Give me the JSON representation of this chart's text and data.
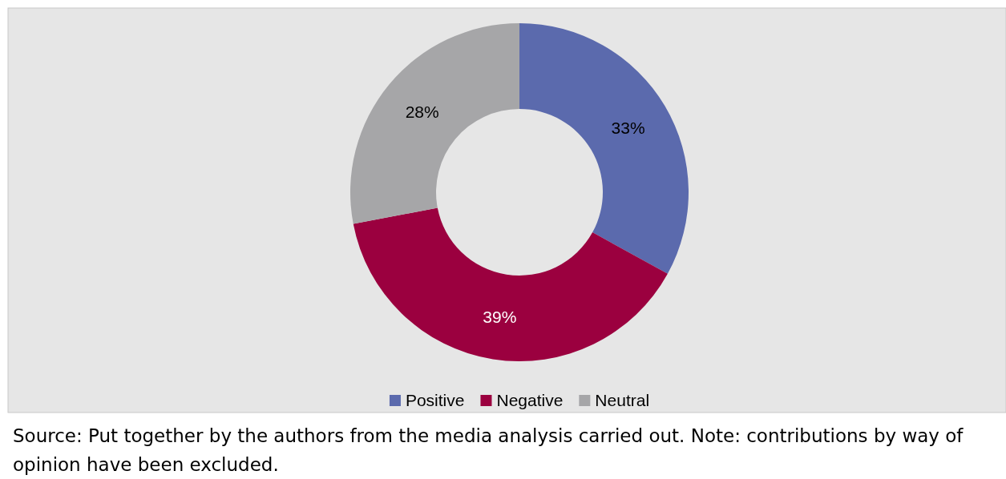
{
  "chart_data": {
    "type": "donut",
    "categories": [
      "Positive",
      "Negative",
      "Neutral"
    ],
    "values": [
      33,
      39,
      28
    ],
    "colors": [
      "#5b6aad",
      "#9b003f",
      "#a6a6a8"
    ],
    "value_labels": [
      "33%",
      "39%",
      "28%"
    ],
    "legend": "bottom",
    "annotations": [
      "Source: Put together by the authors from the media analysis carried out. Note: contributions by way of opinion have been excluded."
    ]
  }
}
